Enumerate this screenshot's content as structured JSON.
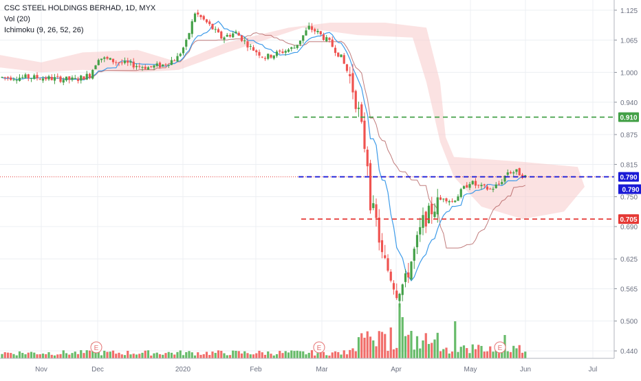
{
  "chart_data": {
    "type": "candlestick",
    "title": "CSC STEEL HOLDINGS BERHAD, 1D, MYX",
    "indicators": [
      "Vol (20)",
      "Ichimoku (9, 26, 52, 26)"
    ],
    "y_ticks": [
      "1.125",
      "1.065",
      "1.000",
      "0.940",
      "0.875",
      "0.815",
      "0.750",
      "0.690",
      "0.625",
      "0.565",
      "0.500",
      "0.440"
    ],
    "x_ticks": [
      "Nov",
      "Dec",
      "2020",
      "Feb",
      "Mar",
      "Apr",
      "May",
      "Jun",
      "Jul"
    ],
    "ylim": [
      0.425,
      1.14
    ],
    "horizontal_lines": [
      {
        "name": "resistance",
        "value": 0.91,
        "label": "0.910",
        "color": "#43a047",
        "style": "dashed"
      },
      {
        "name": "current",
        "value": 0.79,
        "label": "0.790",
        "color": "#1a1ad6",
        "style": "dashed"
      },
      {
        "name": "support",
        "value": 0.705,
        "label": "0.705",
        "color": "#e53935",
        "style": "dashed"
      }
    ],
    "last_price_label": "0.790",
    "earnings_markers": [
      "E",
      "E",
      "E"
    ],
    "candles": [],
    "volume": [],
    "grid": true,
    "colors": {
      "up": "#26a69a",
      "down": "#ef5350",
      "up_candle": "#43a047",
      "tenkan": "#3d9be9",
      "kijun": "#b05a5a",
      "cloud": "#f8caca"
    }
  }
}
